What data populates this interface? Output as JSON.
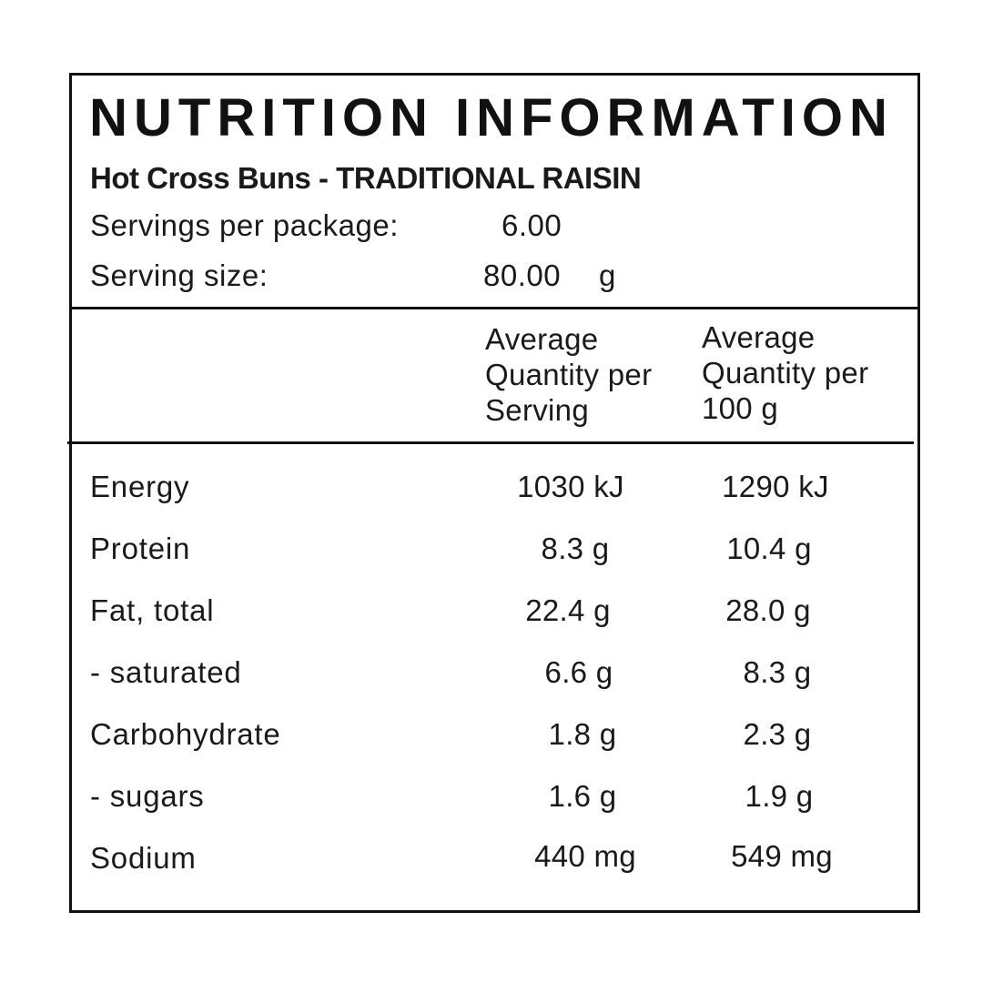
{
  "title": "NUTRITION INFORMATION",
  "product": "Hot Cross Buns - TRADITIONAL RAISIN",
  "servings": {
    "per_package_label": "Servings per package:",
    "per_package_value": "6.00",
    "size_label": "Serving size:",
    "size_value": "80.00",
    "size_unit": "g"
  },
  "columns": {
    "per_serving_line1": "Average",
    "per_serving_line2": "Quantity per",
    "per_serving_line3": "Serving",
    "per_100_line1": "Average",
    "per_100_line2": "Quantity per",
    "per_100_line3": "100  g"
  },
  "rows": [
    {
      "name": "Energy",
      "per_serving": "1030 kJ",
      "per_100": "1290 kJ"
    },
    {
      "name": "Protein",
      "per_serving": "8.3 g",
      "per_100": "10.4 g"
    },
    {
      "name": "Fat, total",
      "per_serving": "22.4 g",
      "per_100": "28.0 g"
    },
    {
      "name": "- saturated",
      "per_serving": "6.6 g",
      "per_100": "8.3 g"
    },
    {
      "name": "Carbohydrate",
      "per_serving": "1.8 g",
      "per_100": "2.3 g"
    },
    {
      "name": "- sugars",
      "per_serving": "1.6 g",
      "per_100": "1.9 g"
    },
    {
      "name": "Sodium",
      "per_serving": "440 mg",
      "per_100": "549 mg"
    }
  ]
}
